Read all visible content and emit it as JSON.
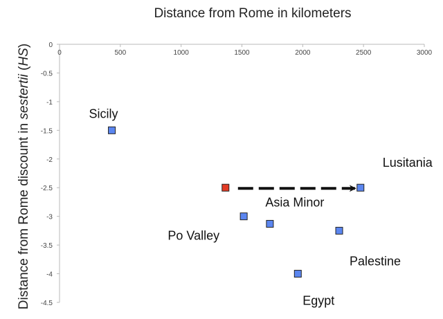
{
  "chart_data": {
    "type": "scatter",
    "title": "Distance from Rome in kilometers",
    "ylabel_parts": [
      {
        "text": "Distance from Rome discount in ",
        "italic": false
      },
      {
        "text": "sestertii",
        "italic": true
      },
      {
        "text": " (",
        "italic": false
      },
      {
        "text": "HS",
        "italic": true
      },
      {
        "text": ")",
        "italic": false
      }
    ],
    "xlim": [
      0,
      3000
    ],
    "ylim": [
      -4.5,
      0
    ],
    "x_ticks": [
      0,
      500,
      1000,
      1500,
      2000,
      2500,
      3000
    ],
    "y_ticks": [
      0,
      -0.5,
      -1,
      -1.5,
      -2,
      -2.5,
      -3,
      -3.5,
      -4,
      -4.5
    ],
    "x_axis_position": "top",
    "grid": false,
    "colors": {
      "blue": "#5b86f0",
      "red": "#e23b25",
      "border": "#222222",
      "axis": "#b8b8b8"
    },
    "points": [
      {
        "label": "Sicily",
        "x": 430,
        "y": -1.5,
        "color": "blue"
      },
      {
        "label": "",
        "x": 1365,
        "y": -2.5,
        "color": "red"
      },
      {
        "label": "Lusitania",
        "x": 2475,
        "y": -2.5,
        "color": "blue"
      },
      {
        "label": "Po Valley",
        "x": 1515,
        "y": -3.0,
        "color": "blue"
      },
      {
        "label": "Asia Minor",
        "x": 1730,
        "y": -3.13,
        "color": "blue"
      },
      {
        "label": "Palestine",
        "x": 2300,
        "y": -3.25,
        "color": "blue"
      },
      {
        "label": "Egypt",
        "x": 1960,
        "y": -4.0,
        "color": "blue"
      }
    ],
    "arrow": {
      "from": [
        1365,
        -2.5
      ],
      "to": [
        2475,
        -2.5
      ],
      "style": "dashed"
    }
  }
}
